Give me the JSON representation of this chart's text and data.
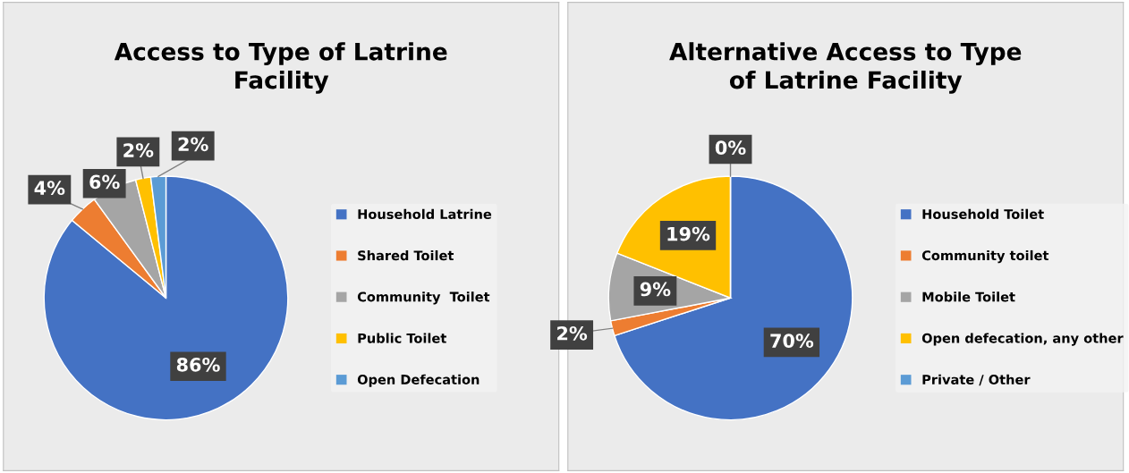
{
  "chart_data": [
    {
      "type": "pie",
      "title": "Access to Type of Latrine Facility",
      "categories": [
        "Household Latrine",
        "Shared Toilet",
        "Community  Toilet",
        "Public Toilet",
        "Open Defecation"
      ],
      "values": [
        86,
        4,
        6,
        2,
        2
      ],
      "colors": [
        "#4472c4",
        "#ed7d31",
        "#a5a5a5",
        "#ffc000",
        "#5b9bd5"
      ],
      "value_labels": [
        "86%",
        "4%",
        "6%",
        "2%",
        "2%"
      ],
      "legend": "right"
    },
    {
      "type": "pie",
      "title": "Alternative Access to Type of Latrine Facility",
      "categories": [
        "Household Toilet",
        "Community toilet",
        "Mobile Toilet",
        "Open defecation, any other",
        "Private / Other"
      ],
      "values": [
        70,
        2,
        9,
        19,
        0
      ],
      "colors": [
        "#4472c4",
        "#ed7d31",
        "#a5a5a5",
        "#ffc000",
        "#5b9bd5"
      ],
      "value_labels": [
        "70%",
        "2%",
        "9%",
        "19%",
        "0%"
      ],
      "legend": "right"
    }
  ]
}
